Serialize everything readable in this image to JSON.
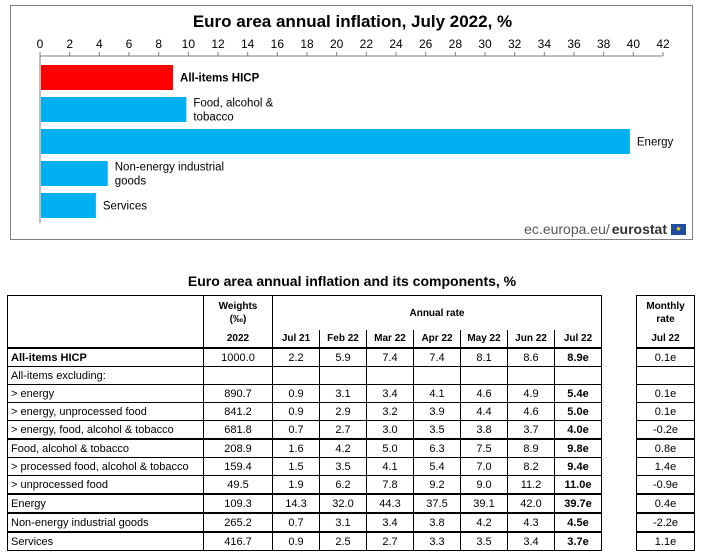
{
  "chart_data": [
    {
      "type": "bar",
      "orientation": "horizontal",
      "title": "Euro area annual inflation, July 2022, %",
      "categories": [
        "All-items HICP",
        "Food, alcohol & tobacco",
        "Energy",
        "Non-energy industrial goods",
        "Services"
      ],
      "category_lines": [
        [
          "All-items HICP"
        ],
        [
          "Food, alcohol &",
          "tobacco"
        ],
        [
          "Energy"
        ],
        [
          "Non-energy industrial",
          "goods"
        ],
        [
          "Services"
        ]
      ],
      "values": [
        8.9,
        9.8,
        39.7,
        4.5,
        3.7
      ],
      "bar_colors": [
        "#ff0000",
        "#00b0f0",
        "#00b0f0",
        "#00b0f0",
        "#00b0f0"
      ],
      "xlim": [
        0,
        42
      ],
      "xticks": [
        "0",
        "2",
        "4",
        "6",
        "8",
        "10",
        "12",
        "14",
        "16",
        "18",
        "20",
        "22",
        "24",
        "26",
        "28",
        "30",
        "32",
        "34",
        "36",
        "38",
        "40",
        "42"
      ],
      "axis_position": "top",
      "grid": false
    },
    {
      "type": "table",
      "title": "Euro area annual inflation and its components, %",
      "header": {
        "weights": "Weights",
        "weights_unit": "(‰)",
        "weights_year": "2022",
        "annual_rate": "Annual rate",
        "months": [
          "Jul 21",
          "Feb 22",
          "Mar 22",
          "Apr 22",
          "May 22",
          "Jun 22",
          "Jul 22"
        ],
        "monthly_rate_line1": "Monthly",
        "monthly_rate_line2": "rate",
        "monthly_month": "Jul 22"
      },
      "rows": [
        {
          "label": "All-items HICP",
          "bold": true,
          "weight": "1000.0",
          "values": [
            "2.2",
            "5.9",
            "7.4",
            "7.4",
            "8.1",
            "8.6",
            "8.9e"
          ],
          "monthly": "0.1e"
        },
        {
          "label": "All-items excluding:",
          "bold": false,
          "weight": "",
          "values": [
            "",
            "",
            "",
            "",
            "",
            "",
            ""
          ],
          "monthly": ""
        },
        {
          "label": "> energy",
          "bold": false,
          "weight": "890.7",
          "values": [
            "0.9",
            "3.1",
            "3.4",
            "4.1",
            "4.6",
            "4.9",
            "5.4e"
          ],
          "monthly": "0.1e"
        },
        {
          "label": "> energy, unprocessed food",
          "bold": false,
          "weight": "841.2",
          "values": [
            "0.9",
            "2.9",
            "3.2",
            "3.9",
            "4.4",
            "4.6",
            "5.0e"
          ],
          "monthly": "0.1e"
        },
        {
          "label": "> energy, food, alcohol & tobacco",
          "bold": false,
          "weight": "681.8",
          "values": [
            "0.7",
            "2.7",
            "3.0",
            "3.5",
            "3.8",
            "3.7",
            "4.0e"
          ],
          "monthly": "-0.2e"
        },
        {
          "label": "Food, alcohol & tobacco",
          "bold": false,
          "weight": "208.9",
          "values": [
            "1.6",
            "4.2",
            "5.0",
            "6.3",
            "7.5",
            "8.9",
            "9.8e"
          ],
          "monthly": "0.8e"
        },
        {
          "label": "> processed food, alcohol & tobacco",
          "bold": false,
          "weight": "159.4",
          "values": [
            "1.5",
            "3.5",
            "4.1",
            "5.4",
            "7.0",
            "8.2",
            "9.4e"
          ],
          "monthly": "1.4e"
        },
        {
          "label": "> unprocessed food",
          "bold": false,
          "weight": "49.5",
          "values": [
            "1.9",
            "6.2",
            "7.8",
            "9.2",
            "9.0",
            "11.2",
            "11.0e"
          ],
          "monthly": "-0.9e"
        },
        {
          "label": "Energy",
          "bold": false,
          "weight": "109.3",
          "values": [
            "14.3",
            "32.0",
            "44.3",
            "37.5",
            "39.1",
            "42.0",
            "39.7e"
          ],
          "monthly": "0.4e"
        },
        {
          "label": "Non-energy industrial goods",
          "bold": false,
          "weight": "265.2",
          "values": [
            "0.7",
            "3.1",
            "3.4",
            "3.8",
            "4.2",
            "4.3",
            "4.5e"
          ],
          "monthly": "-2.2e"
        },
        {
          "label": "Services",
          "bold": false,
          "weight": "416.7",
          "values": [
            "0.9",
            "2.5",
            "2.7",
            "3.3",
            "3.5",
            "3.4",
            "3.7e"
          ],
          "monthly": "1.1e"
        }
      ]
    }
  ],
  "attribution": {
    "site": "ec.europa.eu/",
    "brand": "eurostat",
    "logo_icon": "eu-flag-icon"
  }
}
